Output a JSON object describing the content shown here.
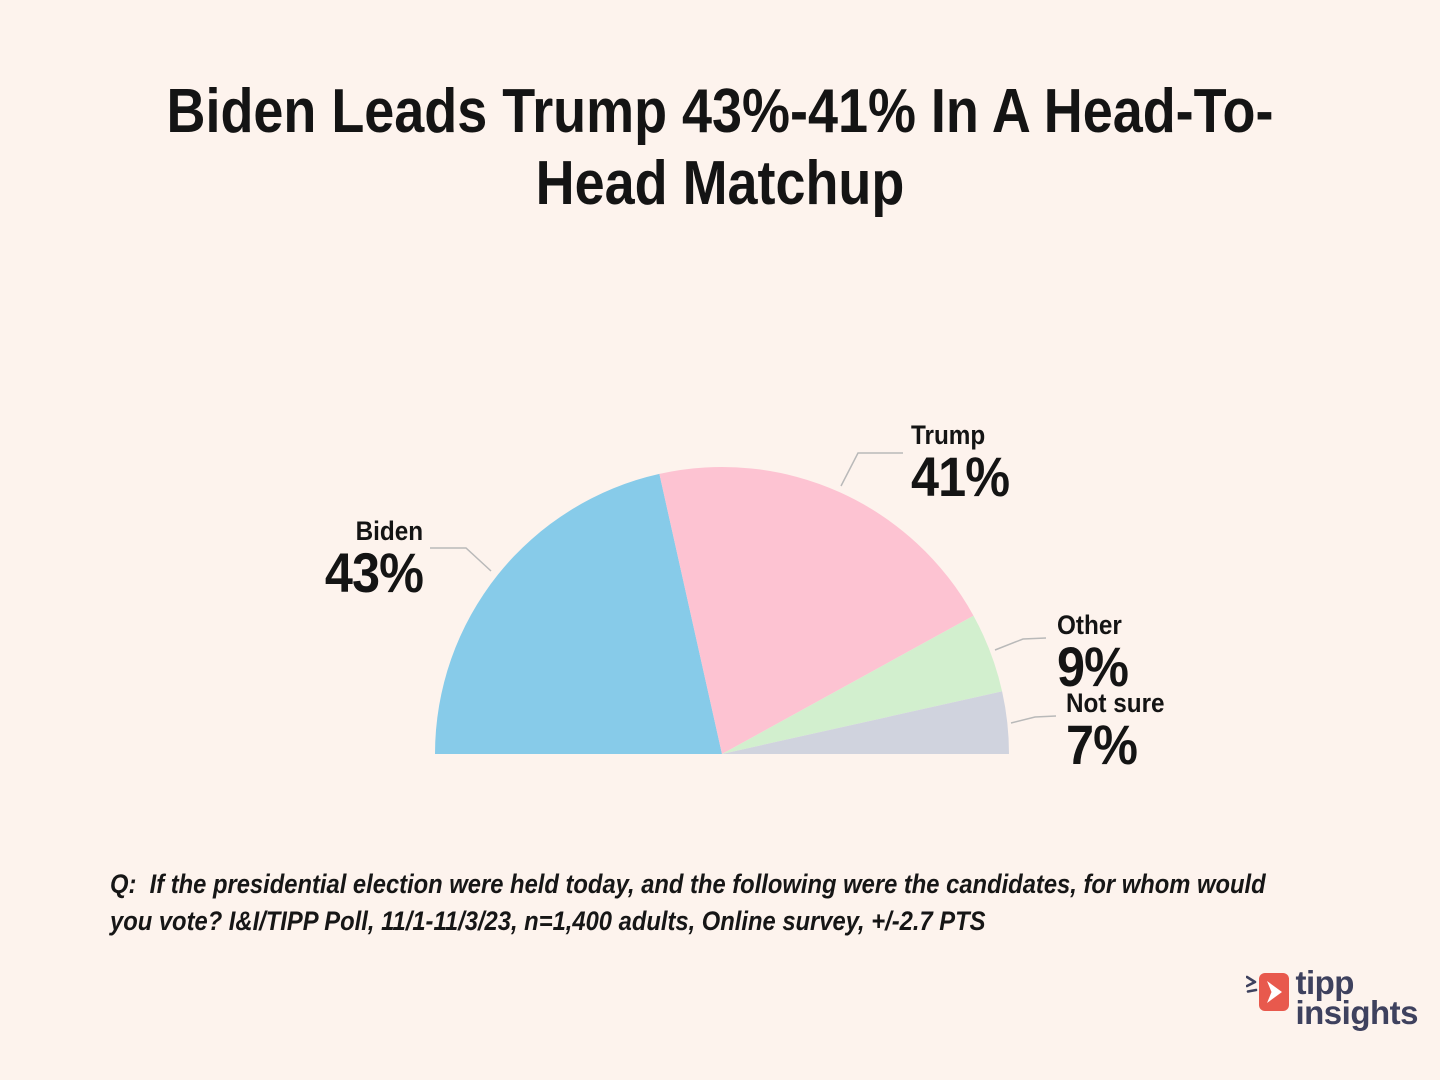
{
  "page": {
    "background_color": "#FDF3ED",
    "text_color": "#141414"
  },
  "title": {
    "text": "Biden Leads Trump 43%-41% In A Head-To-Head Matchup",
    "line1": "Biden Leads Trump 43%-41% In A Head-To-",
    "line2": "Head Matchup"
  },
  "chart_data": {
    "type": "pie",
    "variant": "semicircle-half-pie",
    "title": "Biden Leads Trump 43%-41% In A Head-To-Head Matchup",
    "categories": [
      "Biden",
      "Trump",
      "Other",
      "Not sure"
    ],
    "values": [
      43,
      41,
      9,
      7
    ],
    "value_labels": [
      "43%",
      "41%",
      "9%",
      "7%"
    ],
    "colors": [
      "#87CBE9",
      "#FDC3D2",
      "#D2EFCE",
      "#D0D3DE"
    ],
    "total": 100,
    "start_angle_deg": 180,
    "end_angle_deg": 0,
    "legend_position": "none",
    "label_style": "outside-callout-with-leader-lines",
    "leader_line_color": "#B9B9B9"
  },
  "footnote": {
    "line1": "Q:  If the presidential election were held today, and the following were the candidates, for whom would",
    "line2": "you vote? I&I/TIPP Poll, 11/1-11/3/23, n=1,400 adults, Online survey, +/-2.7 PTS"
  },
  "logo": {
    "word1": "tipp",
    "word2": "insights",
    "icon": "tipp-arrow-icon",
    "accent_color": "#E8594D",
    "text_color": "#3E415E"
  }
}
